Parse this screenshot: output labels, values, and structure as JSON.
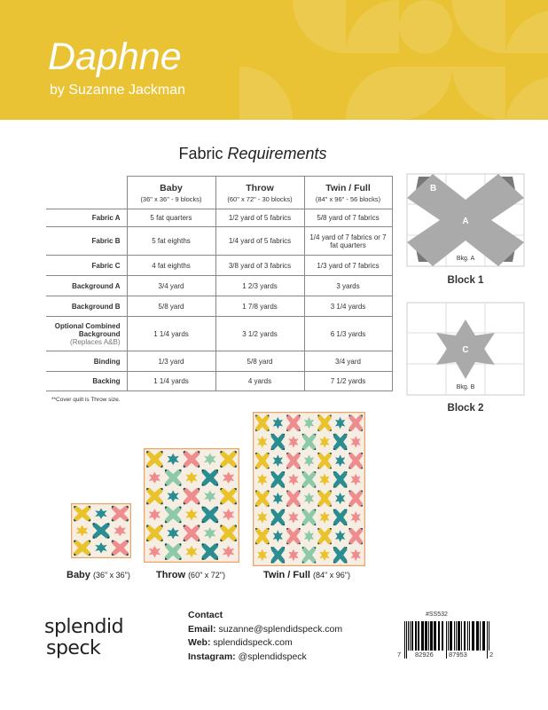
{
  "header": {
    "title": "Daphne",
    "byline": "by Suzanne Jackman",
    "color": "#e9c334"
  },
  "fabric_requirements": {
    "title_plain": "Fabric ",
    "title_italic": "Requirements",
    "columns": [
      {
        "name": "Baby",
        "detail": "(36\" x 36\" - 9 blocks)"
      },
      {
        "name": "Throw",
        "detail": "(60\" x 72\" - 30 blocks)"
      },
      {
        "name": "Twin / Full",
        "detail": "(84\" x 96\" - 56 blocks)"
      }
    ],
    "rows": [
      {
        "label": "Fabric A",
        "cells": [
          "5 fat quarters",
          "1/2 yard of 5 fabrics",
          "5/8 yard of 7 fabrics"
        ]
      },
      {
        "label": "Fabric B",
        "cells": [
          "5 fat eighths",
          "1/4 yard of 5 fabrics",
          "1/4 yard of 7 fabrics or 7 fat quarters"
        ]
      },
      {
        "label": "Fabric C",
        "cells": [
          "4 fat eighths",
          "3/8 yard of 3 fabrics",
          "1/3 yard of 7 fabrics"
        ]
      },
      {
        "label": "Background A",
        "cells": [
          "3/4 yard",
          "1 2/3 yards",
          "3 yards"
        ]
      },
      {
        "label": "Background B",
        "cells": [
          "5/8 yard",
          "1 7/8 yards",
          "3 1/4 yards"
        ]
      },
      {
        "label": "Optional Combined Background",
        "sublabel": "(Replaces A&B)",
        "cells": [
          "1 1/4 yards",
          "3 1/2 yards",
          "6 1/3 yards"
        ]
      },
      {
        "label": "Binding",
        "cells": [
          "1/3 yard",
          "5/8 yard",
          "3/4 yard"
        ]
      },
      {
        "label": "Backing",
        "cells": [
          "1 1/4 yards",
          "4 yards",
          "7 1/2 yards"
        ]
      }
    ],
    "note": "**Cover quilt is Throw size."
  },
  "blocks": [
    {
      "label": "Block 1",
      "fabric": "A",
      "accent": "B",
      "background": "Bkg. A"
    },
    {
      "label": "Block 2",
      "fabric": "C",
      "background": "Bkg. B"
    }
  ],
  "quilts": [
    {
      "name": "Baby",
      "dims": "(36\" x 36\")",
      "cols": 3,
      "rows": 3
    },
    {
      "name": "Throw",
      "dims": "(60\" x 72\")",
      "cols": 5,
      "rows": 6
    },
    {
      "name": "Twin / Full",
      "dims": "(84\" x 96\")",
      "cols": 7,
      "rows": 8
    }
  ],
  "quilt_colors": {
    "background": "#f6eee2",
    "border": "#eba46c",
    "accent": "#1f4f4a",
    "fabrics": [
      "#e9c22c",
      "#2a8d91",
      "#ef8c8e",
      "#8dcaa9"
    ]
  },
  "logo": {
    "line1": "splendid",
    "line2": "speck"
  },
  "contact": {
    "heading": "Contact",
    "email_label": "Email:",
    "email": "suzanne@splendidspeck.com",
    "web_label": "Web:",
    "web": "splendidspeck.com",
    "instagram_label": "Instagram:",
    "instagram": "@splendidspeck"
  },
  "barcode": {
    "sku": "#SS532",
    "lead": "7",
    "left": "82926",
    "right": "87953",
    "check": "2"
  }
}
